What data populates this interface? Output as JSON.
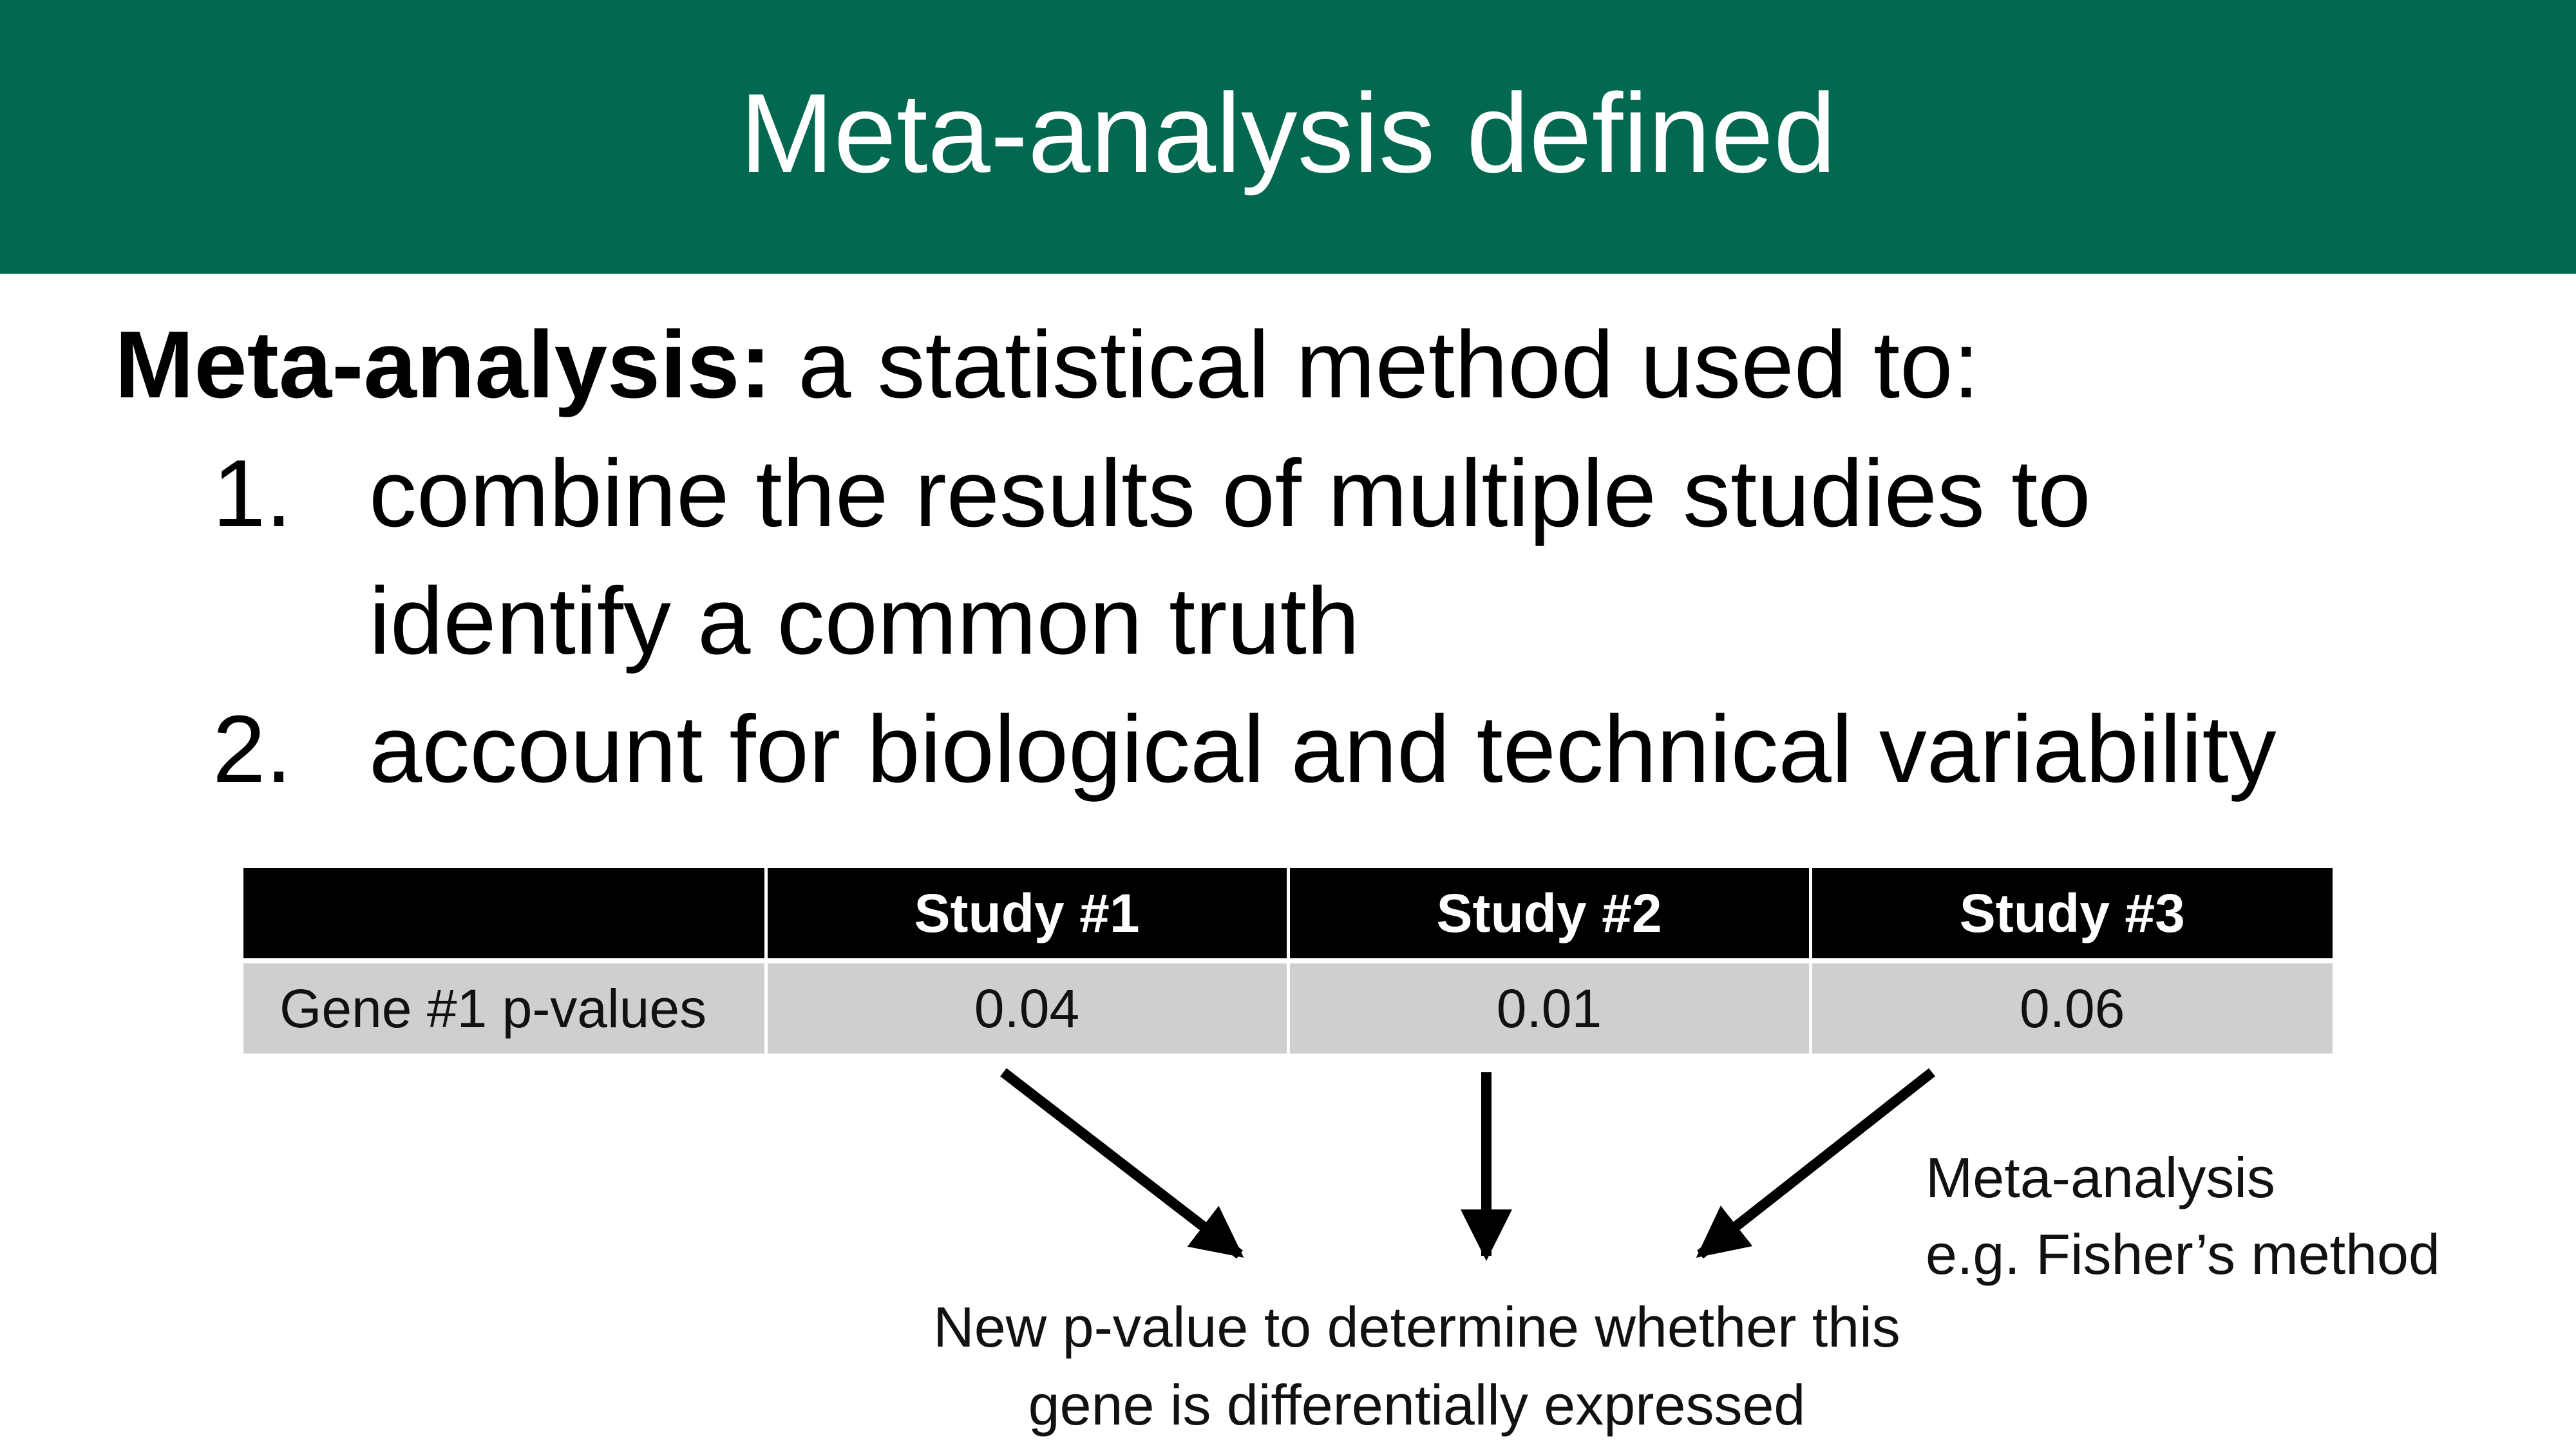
{
  "slide": {
    "title": "Meta-analysis defined",
    "colors": {
      "title_bar": "#036850",
      "header_row": "#000000",
      "data_row": "#cfcfcf"
    }
  },
  "definition": {
    "term": "Meta-analysis:",
    "text": " a statistical method used to:"
  },
  "list": [
    {
      "number": "1.",
      "lines": [
        "combine the results of multiple studies to",
        "identify a common truth"
      ]
    },
    {
      "number": "2.",
      "lines": [
        "account for biological and technical variability"
      ]
    }
  ],
  "table": {
    "columns": [
      "",
      "Study #1",
      "Study #2",
      "Study #3"
    ],
    "rows": [
      {
        "label": "Gene #1 p-values",
        "values": [
          "0.04",
          "0.01",
          "0.06"
        ]
      }
    ]
  },
  "side_note": {
    "line1": "Meta-analysis",
    "line2": "e.g. Fisher’s method"
  },
  "result": {
    "line1": "New p-value to determine whether this",
    "line2": "gene is differentially expressed"
  }
}
